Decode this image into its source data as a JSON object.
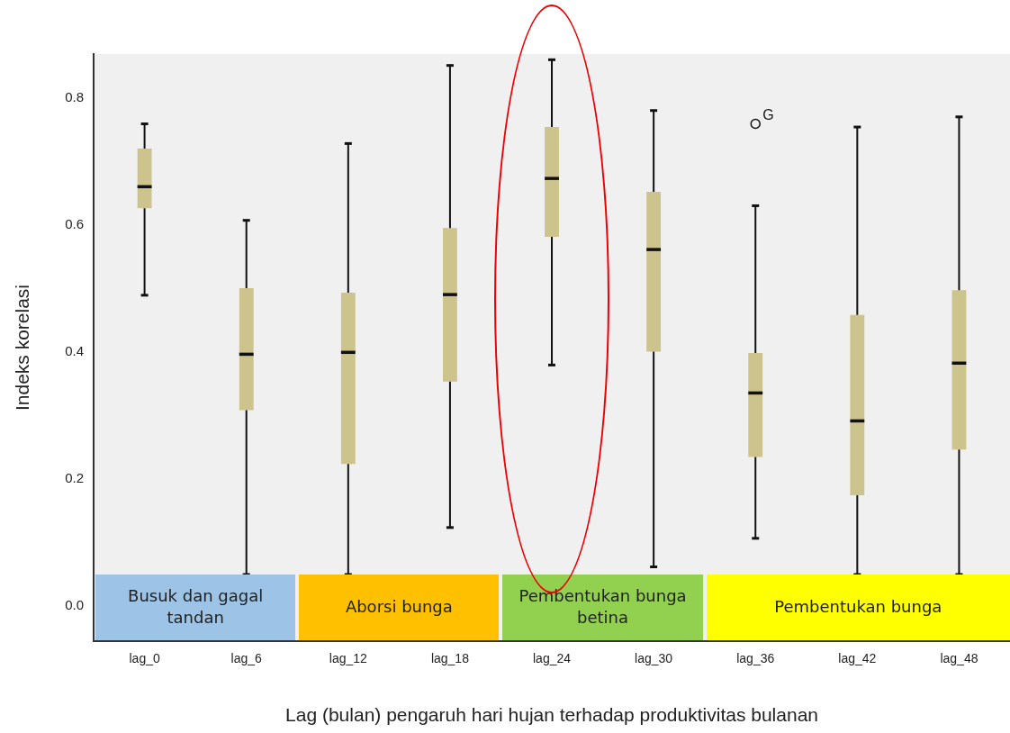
{
  "chart_data": {
    "type": "box",
    "xlabel": "Lag (bulan) pengaruh hari hujan terhadap produktivitas bulanan",
    "ylabel": "Indeks korelasi",
    "categories": [
      "lag_0",
      "lag_6",
      "lag_12",
      "lag_18",
      "lag_24",
      "lag_30",
      "lag_36",
      "lag_42",
      "lag_48"
    ],
    "color": "#cdc38c",
    "boxes": [
      {
        "low": 0.49,
        "q1": 0.627,
        "median": 0.661,
        "q3": 0.721,
        "high": 0.76
      },
      {
        "low": 0.05,
        "q1": 0.309,
        "median": 0.397,
        "q3": 0.501,
        "high": 0.608
      },
      {
        "low": 0.05,
        "q1": 0.224,
        "median": 0.4,
        "q3": 0.494,
        "high": 0.729
      },
      {
        "low": 0.124,
        "q1": 0.354,
        "median": 0.491,
        "q3": 0.596,
        "high": 0.852
      },
      {
        "low": 0.38,
        "q1": 0.582,
        "median": 0.674,
        "q3": 0.755,
        "high": 0.861
      },
      {
        "low": 0.062,
        "q1": 0.401,
        "median": 0.562,
        "q3": 0.653,
        "high": 0.781
      },
      {
        "low": 0.107,
        "q1": 0.235,
        "median": 0.336,
        "q3": 0.399,
        "high": 0.631,
        "outliers": [
          0.76
        ]
      },
      {
        "low": 0.05,
        "q1": 0.175,
        "median": 0.292,
        "q3": 0.459,
        "high": 0.755
      },
      {
        "low": 0.05,
        "q1": 0.247,
        "median": 0.383,
        "q3": 0.498,
        "high": 0.771
      }
    ],
    "ylim": [
      -0.055,
      0.87
    ],
    "yticks": [
      {
        "value": 0,
        "label": "0.0"
      },
      {
        "value": 0.2,
        "label": "0.2"
      },
      {
        "value": 0.4,
        "label": "0.4"
      },
      {
        "value": 0.6,
        "label": "0.6"
      },
      {
        "value": 0.8,
        "label": "0.8"
      }
    ],
    "grid": false,
    "legend": false,
    "annotations": [
      "Busuk dan gagal tandan",
      "Aborsi bunga",
      "Pembentukan bunga betina",
      "Pembentukan bunga",
      "G"
    ]
  }
}
